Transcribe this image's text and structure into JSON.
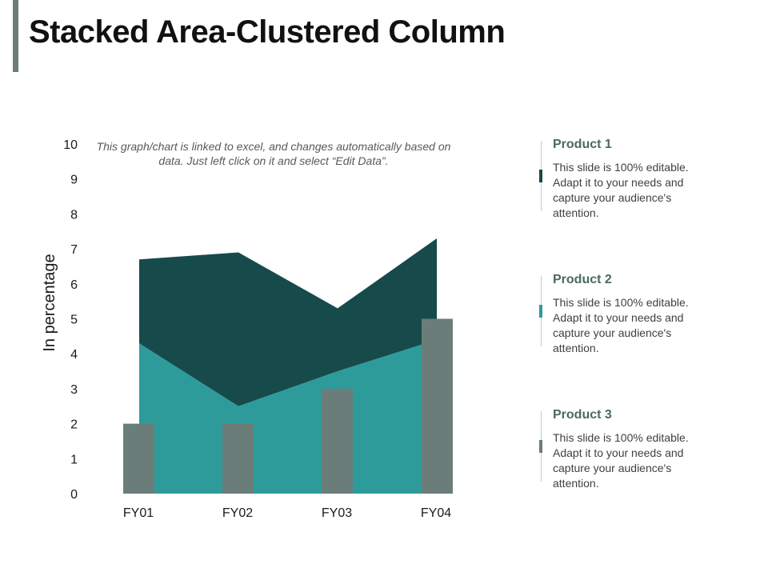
{
  "title": "Stacked Area-Clustered Column",
  "note": "This graph/chart is linked to excel, and changes automatically based on data. Just left click on it and select “Edit Data”.",
  "colors": {
    "accent_bar": "#6b7d78",
    "area_top": "#174a4b",
    "area_bottom": "#2e9b9b",
    "column": "#6b7d78"
  },
  "chart_data": {
    "type": "area",
    "categories": [
      "FY01",
      "FY02",
      "FY03",
      "FY04"
    ],
    "ylabel": "In percentage",
    "xlabel": "",
    "ylim": [
      0,
      10
    ],
    "yticks": [
      0,
      1,
      2,
      3,
      4,
      5,
      6,
      7,
      8,
      9,
      10
    ],
    "grid": false,
    "series": [
      {
        "kind": "stacked-area",
        "color": "#2e9b9b",
        "values": [
          4.3,
          2.5,
          3.5,
          4.4
        ]
      },
      {
        "kind": "stacked-area",
        "color": "#174a4b",
        "values": [
          2.4,
          4.4,
          1.8,
          2.9
        ]
      },
      {
        "kind": "column",
        "color": "#6b7d78",
        "values": [
          2,
          2,
          3,
          5
        ]
      }
    ]
  },
  "legend": [
    {
      "name": "Product 1",
      "color": "#174a4b",
      "desc": "This slide is 100% editable. Adapt it to your needs and capture your audience's attention."
    },
    {
      "name": "Product 2",
      "color": "#2e9b9b",
      "desc": "This slide is 100% editable. Adapt it to your needs and capture your audience's attention."
    },
    {
      "name": "Product 3",
      "color": "#6b7d78",
      "desc": "This slide is 100% editable. Adapt it to your needs and capture your audience's attention."
    }
  ]
}
